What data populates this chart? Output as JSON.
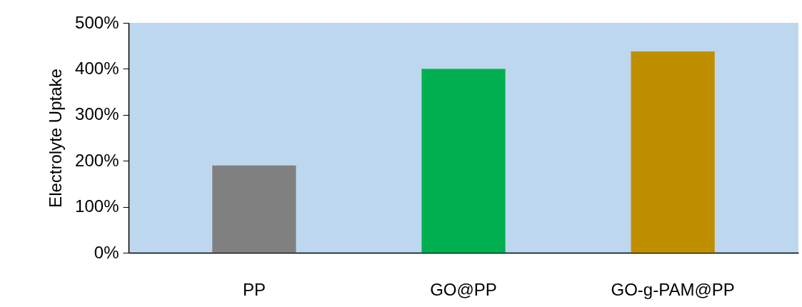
{
  "chart_data": {
    "type": "bar",
    "ylabel": "Electrolyte Uptake",
    "categories": [
      "PP",
      "GO@PP",
      "GO-g-PAM@PP"
    ],
    "values": [
      190,
      400,
      438
    ],
    "colors": [
      "#808080",
      "#00b050",
      "#bf8f00"
    ],
    "ylim": [
      0,
      500
    ],
    "yticks": [
      {
        "value": 0,
        "label": "0%"
      },
      {
        "value": 100,
        "label": "100%"
      },
      {
        "value": 200,
        "label": "200%"
      },
      {
        "value": 300,
        "label": "300%"
      },
      {
        "value": 400,
        "label": "400%"
      },
      {
        "value": 500,
        "label": "500%"
      }
    ],
    "grid": false,
    "legend": false
  }
}
